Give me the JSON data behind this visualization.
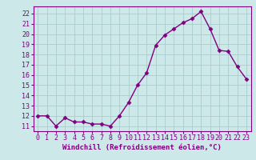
{
  "x": [
    0,
    1,
    2,
    3,
    4,
    5,
    6,
    7,
    8,
    9,
    10,
    11,
    12,
    13,
    14,
    15,
    16,
    17,
    18,
    19,
    20,
    21,
    22,
    23
  ],
  "y": [
    12.0,
    12.0,
    11.0,
    11.8,
    11.4,
    11.4,
    11.2,
    11.2,
    11.0,
    12.0,
    13.3,
    15.0,
    16.2,
    18.9,
    19.9,
    20.5,
    21.1,
    21.5,
    22.2,
    20.5,
    18.4,
    18.3,
    16.8,
    15.6
  ],
  "line_color": "#800080",
  "marker": "D",
  "marker_size": 2.5,
  "bg_color": "#cce8e8",
  "grid_color": "#aacccc",
  "xlabel": "Windchill (Refroidissement éolien,°C)",
  "xlim": [
    -0.5,
    23.5
  ],
  "ylim": [
    10.5,
    22.7
  ],
  "yticks": [
    11,
    12,
    13,
    14,
    15,
    16,
    17,
    18,
    19,
    20,
    21,
    22
  ],
  "xticks": [
    0,
    1,
    2,
    3,
    4,
    5,
    6,
    7,
    8,
    9,
    10,
    11,
    12,
    13,
    14,
    15,
    16,
    17,
    18,
    19,
    20,
    21,
    22,
    23
  ],
  "axis_color": "#800080",
  "tick_color": "#800080",
  "xlabel_fontsize": 6.5,
  "tick_fontsize": 6.0,
  "line_width": 1.0
}
